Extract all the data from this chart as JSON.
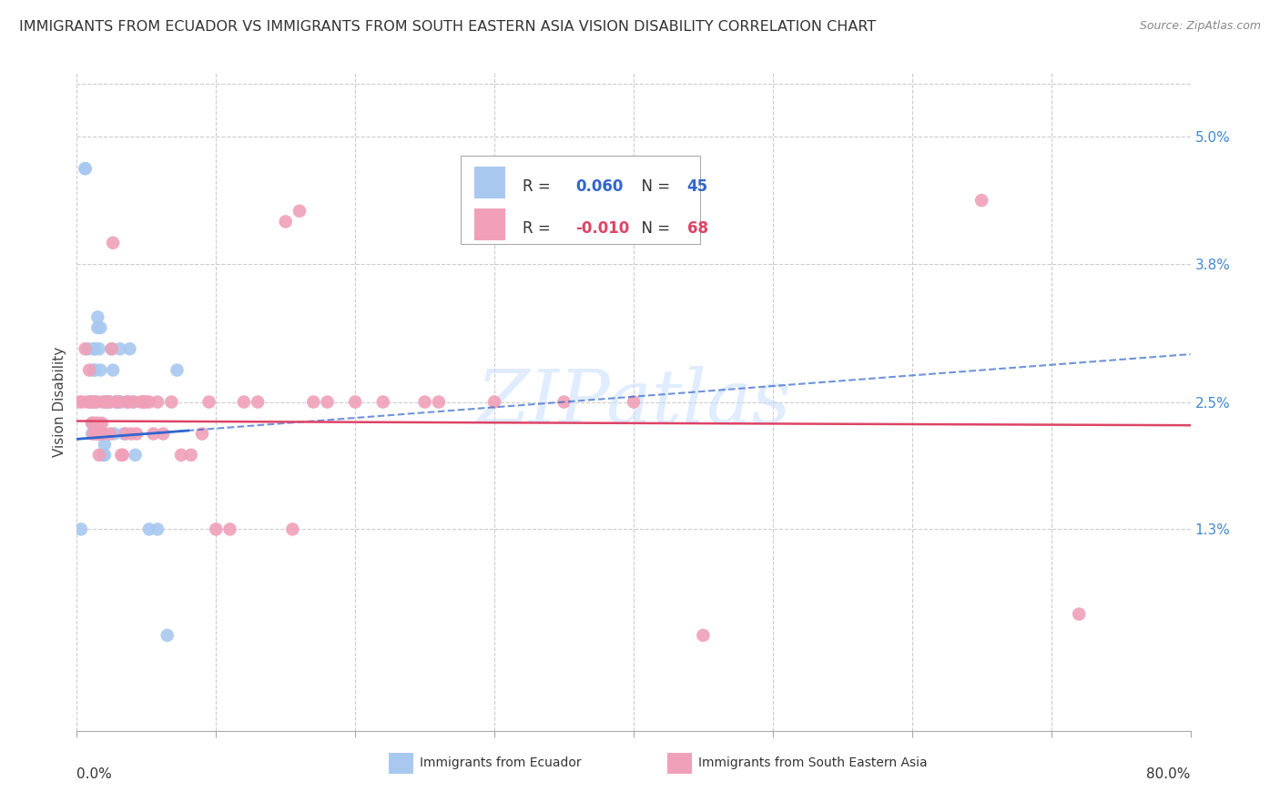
{
  "title": "IMMIGRANTS FROM ECUADOR VS IMMIGRANTS FROM SOUTH EASTERN ASIA VISION DISABILITY CORRELATION CHART",
  "source": "Source: ZipAtlas.com",
  "ylabel": "Vision Disability",
  "xmin": 0.0,
  "xmax": 0.8,
  "ymin": -0.006,
  "ymax": 0.056,
  "ytick_vals": [
    0.013,
    0.025,
    0.038,
    0.05
  ],
  "ytick_labels": [
    "1.3%",
    "2.5%",
    "3.8%",
    "5.0%"
  ],
  "watermark": "ZIPatlas",
  "series": [
    {
      "name": "Immigrants from Ecuador",
      "R": 0.06,
      "N": 45,
      "color": "#A8C8F0",
      "line_color": "#3366CC",
      "line_style": "-",
      "trend_start_x": 0.0,
      "trend_start_y": 0.0215,
      "trend_end_x": 0.8,
      "trend_end_y": 0.0295,
      "x": [
        0.003,
        0.006,
        0.006,
        0.008,
        0.009,
        0.01,
        0.011,
        0.011,
        0.012,
        0.012,
        0.013,
        0.013,
        0.014,
        0.015,
        0.015,
        0.016,
        0.017,
        0.017,
        0.018,
        0.018,
        0.019,
        0.019,
        0.02,
        0.02,
        0.021,
        0.022,
        0.023,
        0.024,
        0.025,
        0.026,
        0.027,
        0.028,
        0.03,
        0.031,
        0.032,
        0.034,
        0.036,
        0.038,
        0.04,
        0.042,
        0.048,
        0.052,
        0.058,
        0.065,
        0.072
      ],
      "y": [
        0.013,
        0.047,
        0.047,
        0.03,
        0.025,
        0.025,
        0.023,
        0.022,
        0.03,
        0.028,
        0.03,
        0.028,
        0.025,
        0.033,
        0.032,
        0.03,
        0.032,
        0.028,
        0.025,
        0.022,
        0.022,
        0.02,
        0.021,
        0.02,
        0.025,
        0.025,
        0.025,
        0.025,
        0.03,
        0.028,
        0.022,
        0.025,
        0.025,
        0.03,
        0.025,
        0.022,
        0.025,
        0.03,
        0.025,
        0.02,
        0.025,
        0.013,
        0.013,
        0.003,
        0.028
      ]
    },
    {
      "name": "Immigrants from South Eastern Asia",
      "R": -0.01,
      "N": 68,
      "color": "#F0A0B8",
      "line_color": "#DD4466",
      "line_style": "-",
      "trend_start_x": 0.0,
      "trend_start_y": 0.0232,
      "trend_end_x": 0.8,
      "trend_end_y": 0.0228,
      "x": [
        0.002,
        0.004,
        0.006,
        0.008,
        0.009,
        0.01,
        0.011,
        0.011,
        0.012,
        0.013,
        0.013,
        0.014,
        0.014,
        0.015,
        0.015,
        0.016,
        0.016,
        0.017,
        0.018,
        0.019,
        0.02,
        0.021,
        0.022,
        0.023,
        0.024,
        0.025,
        0.026,
        0.028,
        0.03,
        0.032,
        0.033,
        0.035,
        0.036,
        0.037,
        0.039,
        0.041,
        0.043,
        0.046,
        0.048,
        0.05,
        0.052,
        0.055,
        0.058,
        0.062,
        0.068,
        0.075,
        0.082,
        0.09,
        0.095,
        0.1,
        0.11,
        0.12,
        0.13,
        0.15,
        0.155,
        0.16,
        0.17,
        0.18,
        0.2,
        0.22,
        0.25,
        0.26,
        0.3,
        0.35,
        0.4,
        0.45,
        0.65,
        0.72
      ],
      "y": [
        0.025,
        0.025,
        0.03,
        0.025,
        0.028,
        0.025,
        0.025,
        0.023,
        0.022,
        0.025,
        0.023,
        0.025,
        0.022,
        0.023,
        0.022,
        0.022,
        0.02,
        0.022,
        0.023,
        0.022,
        0.025,
        0.025,
        0.025,
        0.025,
        0.022,
        0.03,
        0.04,
        0.025,
        0.025,
        0.02,
        0.02,
        0.022,
        0.025,
        0.025,
        0.022,
        0.025,
        0.022,
        0.025,
        0.025,
        0.025,
        0.025,
        0.022,
        0.025,
        0.022,
        0.025,
        0.02,
        0.02,
        0.022,
        0.025,
        0.013,
        0.013,
        0.025,
        0.025,
        0.042,
        0.013,
        0.043,
        0.025,
        0.025,
        0.025,
        0.025,
        0.025,
        0.025,
        0.025,
        0.025,
        0.025,
        0.003,
        0.044,
        0.005
      ]
    }
  ],
  "background_color": "#FFFFFF",
  "grid_color": "#CCCCCC",
  "title_fontsize": 11.5,
  "axis_label_fontsize": 11,
  "tick_fontsize": 11,
  "legend_fontsize": 12
}
